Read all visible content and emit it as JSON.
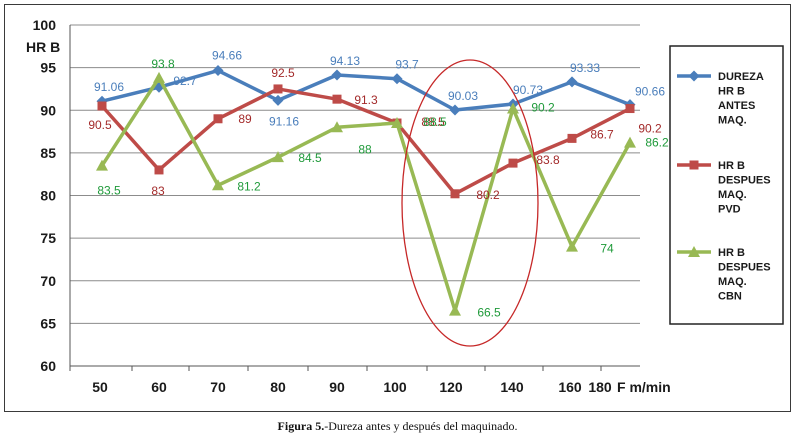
{
  "chart_data": {
    "type": "line",
    "ylabel": "HR B",
    "xlabel": "F m/min",
    "ylim": [
      60,
      100
    ],
    "yticks": [
      "60",
      "65",
      "70",
      "75",
      "80",
      "85",
      "90",
      "95",
      "100"
    ],
    "categories": [
      "50",
      "60",
      "70",
      "80",
      "90",
      "100",
      "120",
      "140",
      "160",
      "180"
    ],
    "grid": true,
    "legend_position": "right",
    "series": [
      {
        "name_lines": [
          "DUREZA",
          "HR B",
          "ANTES",
          "MAQ."
        ],
        "color": "#4a7ebb",
        "label_color": "#4a7ebb",
        "marker": "diamond",
        "values": [
          91.06,
          92.7,
          94.66,
          91.16,
          94.13,
          93.7,
          90.03,
          90.73,
          93.33,
          90.66
        ],
        "labels": [
          "91.06",
          "92.7",
          "94.66",
          "91.16",
          "94.13",
          "93.7",
          "90.03",
          "90.73",
          "93.33",
          "90.66"
        ]
      },
      {
        "name_lines": [
          "HR B",
          "DESPUES",
          "MAQ.",
          "PVD"
        ],
        "color": "#be4b48",
        "label_color": "#a32a2a",
        "marker": "square",
        "values": [
          90.5,
          83,
          89,
          92.5,
          91.3,
          88.5,
          80.2,
          83.8,
          86.7,
          90.2
        ],
        "labels": [
          "90.5",
          "83",
          "89",
          "92.5",
          "91.3",
          "88.5",
          "80.2",
          "83.8",
          "86.7",
          "90.2"
        ]
      },
      {
        "name_lines": [
          "HR B",
          "DESPUES",
          "MAQ.",
          "CBN"
        ],
        "color": "#98b954",
        "label_color": "#1f9a3a",
        "marker": "triangle",
        "values": [
          83.5,
          93.8,
          81.2,
          84.5,
          88,
          88.5,
          66.5,
          90.2,
          74,
          86.2
        ],
        "labels": [
          "83.5",
          "93.8",
          "81.2",
          "84.5",
          "88",
          "88.5",
          "66.5",
          "90.2",
          "74",
          "86.2"
        ]
      }
    ],
    "annotation": "ellipse highlighting 120 to 140"
  },
  "caption": {
    "prefix": "Figura 5.",
    "text": "-Dureza antes y después del maquinado."
  }
}
